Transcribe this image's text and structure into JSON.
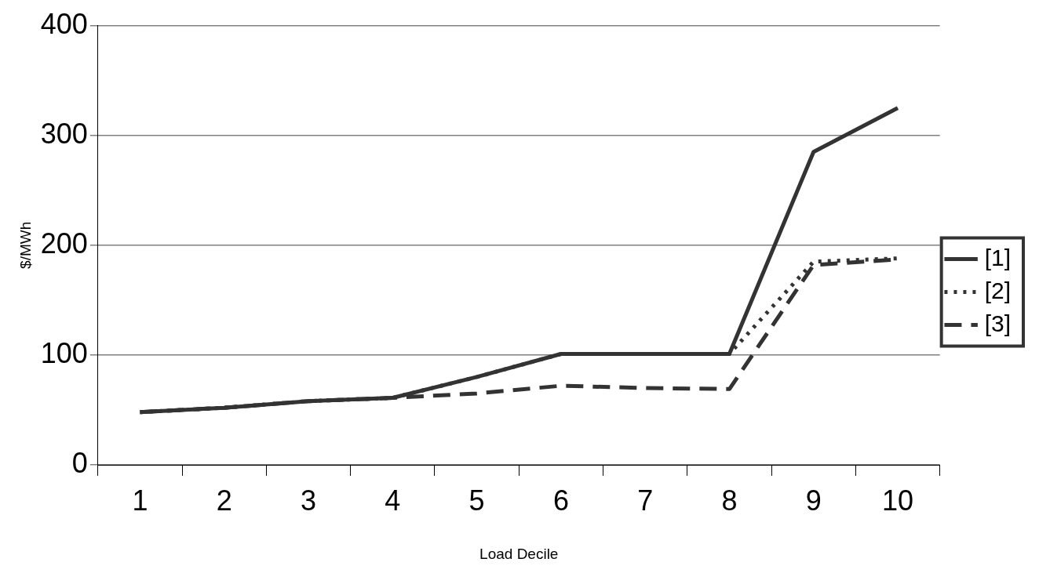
{
  "chart_data": {
    "type": "line",
    "xlabel": "Load Decile",
    "ylabel": "$/MWh",
    "categories": [
      "1",
      "2",
      "3",
      "4",
      "5",
      "6",
      "7",
      "8",
      "9",
      "10"
    ],
    "series": [
      {
        "name": "[1]",
        "color": "#333333",
        "line_style": "solid",
        "values": [
          48,
          52,
          58,
          61,
          80,
          101,
          101,
          101,
          285,
          325
        ]
      },
      {
        "name": "[2]",
        "color": "#333333",
        "line_style": "dotted",
        "values": [
          48,
          52,
          58,
          61,
          80,
          101,
          101,
          101,
          185,
          188
        ]
      },
      {
        "name": "[3]",
        "color": "#333333",
        "line_style": "dashed",
        "values": [
          48,
          52,
          58,
          61,
          65,
          72,
          70,
          69,
          182,
          187
        ]
      }
    ],
    "ylim": [
      0,
      400
    ],
    "yticks": [
      0,
      100,
      200,
      300,
      400
    ],
    "grid": "y",
    "legend": "right",
    "marker": "none"
  }
}
